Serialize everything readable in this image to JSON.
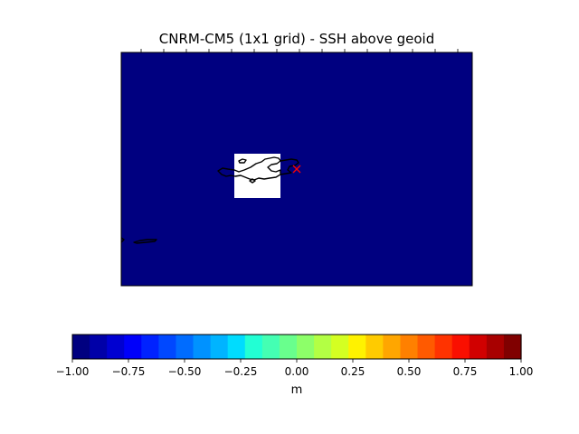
{
  "chart_data": {
    "type": "heatmap",
    "title": "CNRM-CM5 (1x1 grid) - SSH above geoid",
    "field_value": "-1.00",
    "masked_land_box": true,
    "marker": {
      "symbol": "x",
      "color": "#ff0000"
    },
    "colorbar": {
      "orientation": "horizontal",
      "label": "m",
      "range": [
        -1.0,
        1.0
      ],
      "ticks": [
        -1.0,
        -0.75,
        -0.5,
        -0.25,
        0.0,
        0.25,
        0.5,
        0.75,
        1.0
      ],
      "tick_labels": [
        "−1.00",
        "−0.75",
        "−0.50",
        "−0.25",
        "0.00",
        "0.25",
        "0.50",
        "0.75",
        "1.00"
      ],
      "colormap": "jet",
      "n_levels": 24,
      "colors": [
        "#000080",
        "#0000a8",
        "#0000d1",
        "#0000fa",
        "#0022ff",
        "#0048ff",
        "#006cff",
        "#0092ff",
        "#00b4ff",
        "#00dcfe",
        "#22ffd4",
        "#44ffb3",
        "#69ff8d",
        "#8dff69",
        "#b3ff44",
        "#d4ff22",
        "#fff200",
        "#ffcb00",
        "#ffa600",
        "#ff8000",
        "#ff5a00",
        "#ff3300",
        "#fa0f00",
        "#d10000",
        "#a80000",
        "#800000"
      ]
    }
  }
}
